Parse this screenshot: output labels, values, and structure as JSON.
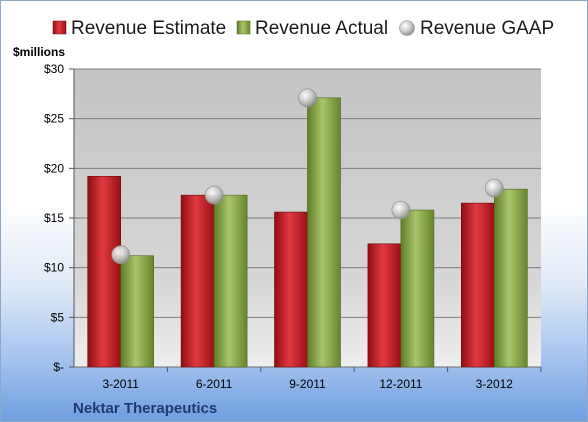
{
  "chart_data": {
    "type": "bar",
    "unit_label": "$millions",
    "company": "Nektar Therapeutics",
    "categories": [
      "3-2011",
      "6-2011",
      "9-2011",
      "12-2011",
      "3-2012"
    ],
    "series": [
      {
        "name": "Revenue Estimate",
        "type": "bar",
        "values": [
          19.2,
          17.3,
          15.6,
          12.4,
          16.5
        ]
      },
      {
        "name": "Revenue Actual",
        "type": "bar",
        "values": [
          11.2,
          17.3,
          27.1,
          15.8,
          17.9
        ]
      },
      {
        "name": "Revenue GAAP",
        "type": "marker",
        "values": [
          11.3,
          17.3,
          27.1,
          15.8,
          18.0
        ]
      }
    ],
    "y_ticks": [
      "$-",
      "$5",
      "$10",
      "$15",
      "$20",
      "$25",
      "$30"
    ],
    "ylim": [
      0,
      30
    ],
    "grid": true,
    "legend_position": "top",
    "colors": {
      "estimate": "#c0141c",
      "actual": "#8aaa46",
      "gaap": "#c8c8c8",
      "plot_bg": "#cfcfcf",
      "company_text": "#1f3a6e"
    }
  }
}
